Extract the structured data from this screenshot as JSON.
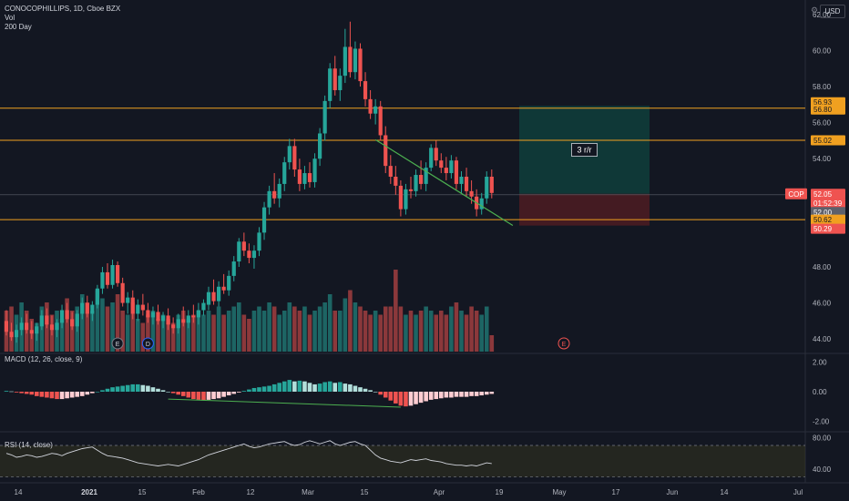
{
  "legend": {
    "symbol": "CONOCOPHILLIPS, 1D, Cboe BZX",
    "vol": "Vol",
    "ma": "200 Day"
  },
  "currency": "USD",
  "rr_label": "3 r/r",
  "macd_label": "MACD (12, 26, close, 9)",
  "rsi_label": "RSI (14, close)",
  "colors": {
    "up": "#26a69a",
    "down": "#ef5350",
    "level": "#f0a020",
    "trend": "#4caf50",
    "target": "#0f3c3a",
    "stop": "#4a1c22"
  },
  "chart_data": [
    {
      "type": "candlestick",
      "symbol": "COP",
      "timeframe": "1D",
      "x_ticks": [
        "14",
        "2021",
        "15",
        "Feb",
        "12",
        "Mar",
        "15",
        "Apr",
        "19",
        "May",
        "17",
        "Jun",
        "14",
        "Jul"
      ],
      "y_ticks": [
        44.0,
        46.0,
        48.0,
        50.0,
        52.0,
        54.0,
        56.0,
        58.0,
        60.0,
        62.0
      ],
      "ylim": [
        43.2,
        62.8
      ],
      "candles": [
        [
          45.0,
          45.6,
          44.2,
          44.4
        ],
        [
          44.4,
          44.9,
          43.9,
          44.1
        ],
        [
          44.1,
          44.8,
          43.8,
          44.5
        ],
        [
          44.5,
          45.2,
          44.2,
          44.9
        ],
        [
          44.9,
          45.4,
          44.3,
          44.5
        ],
        [
          44.5,
          45.0,
          44.0,
          44.3
        ],
        [
          44.3,
          44.9,
          43.9,
          44.7
        ],
        [
          44.7,
          45.6,
          44.5,
          45.3
        ],
        [
          45.3,
          45.7,
          44.6,
          44.8
        ],
        [
          44.8,
          45.3,
          44.2,
          44.5
        ],
        [
          44.5,
          45.1,
          44.1,
          44.9
        ],
        [
          44.9,
          45.9,
          44.6,
          45.6
        ],
        [
          45.6,
          46.0,
          44.9,
          45.1
        ],
        [
          45.1,
          45.5,
          44.5,
          44.7
        ],
        [
          44.7,
          45.6,
          44.4,
          45.4
        ],
        [
          45.4,
          46.3,
          45.1,
          46.0
        ],
        [
          46.0,
          46.4,
          45.2,
          45.4
        ],
        [
          45.4,
          46.1,
          45.0,
          45.9
        ],
        [
          45.9,
          47.0,
          45.7,
          46.8
        ],
        [
          46.8,
          48.0,
          46.5,
          47.7
        ],
        [
          47.7,
          48.2,
          46.8,
          47.0
        ],
        [
          47.0,
          48.4,
          46.8,
          48.1
        ],
        [
          48.1,
          48.3,
          46.9,
          47.1
        ],
        [
          47.1,
          47.4,
          45.8,
          46.0
        ],
        [
          46.0,
          46.6,
          45.4,
          46.3
        ],
        [
          46.3,
          46.7,
          45.1,
          45.4
        ],
        [
          45.4,
          46.2,
          45.0,
          45.9
        ],
        [
          45.9,
          46.5,
          45.3,
          45.6
        ],
        [
          45.6,
          46.0,
          44.9,
          45.2
        ],
        [
          45.2,
          45.8,
          44.8,
          45.5
        ],
        [
          45.5,
          45.9,
          44.8,
          45.0
        ],
        [
          45.0,
          45.5,
          44.6,
          45.3
        ],
        [
          45.3,
          45.7,
          44.5,
          44.8
        ],
        [
          44.8,
          45.2,
          44.3,
          44.6
        ],
        [
          44.6,
          45.4,
          44.3,
          45.1
        ],
        [
          45.1,
          45.8,
          44.7,
          44.9
        ],
        [
          44.9,
          45.6,
          44.6,
          45.3
        ],
        [
          45.3,
          45.9,
          44.9,
          45.2
        ],
        [
          45.2,
          46.0,
          44.8,
          45.6
        ],
        [
          45.6,
          46.2,
          45.3,
          46.0
        ],
        [
          45.9,
          46.9,
          45.6,
          46.6
        ],
        [
          46.6,
          47.3,
          45.9,
          46.1
        ],
        [
          46.1,
          47.2,
          45.8,
          46.9
        ],
        [
          46.9,
          47.6,
          46.5,
          46.7
        ],
        [
          46.7,
          47.8,
          46.4,
          47.5
        ],
        [
          47.5,
          48.6,
          47.2,
          48.3
        ],
        [
          48.3,
          49.6,
          48.0,
          49.4
        ],
        [
          49.4,
          49.9,
          48.6,
          48.9
        ],
        [
          48.9,
          49.3,
          48.2,
          48.5
        ],
        [
          48.5,
          49.2,
          47.9,
          48.9
        ],
        [
          48.9,
          50.2,
          48.6,
          49.9
        ],
        [
          49.9,
          51.6,
          49.5,
          51.3
        ],
        [
          51.3,
          52.5,
          50.9,
          52.2
        ],
        [
          52.2,
          53.2,
          51.5,
          51.8
        ],
        [
          51.8,
          52.9,
          51.3,
          52.6
        ],
        [
          52.6,
          54.1,
          52.2,
          53.8
        ],
        [
          53.8,
          55.1,
          53.4,
          54.7
        ],
        [
          54.7,
          55.1,
          53.0,
          53.4
        ],
        [
          53.4,
          54.0,
          52.2,
          52.6
        ],
        [
          52.6,
          53.6,
          52.3,
          53.2
        ],
        [
          53.2,
          53.8,
          52.4,
          52.7
        ],
        [
          52.7,
          54.3,
          52.4,
          54.0
        ],
        [
          54.0,
          55.7,
          53.6,
          55.4
        ],
        [
          55.4,
          57.5,
          55.0,
          57.2
        ],
        [
          57.2,
          59.3,
          56.8,
          59.0
        ],
        [
          59.0,
          59.7,
          57.5,
          57.8
        ],
        [
          57.8,
          59.0,
          57.2,
          58.6
        ],
        [
          58.6,
          61.2,
          58.2,
          60.2
        ],
        [
          60.2,
          61.6,
          58.5,
          58.8
        ],
        [
          58.8,
          60.5,
          58.4,
          60.1
        ],
        [
          60.1,
          60.4,
          58.0,
          58.3
        ],
        [
          58.3,
          58.8,
          56.9,
          57.3
        ],
        [
          57.3,
          57.8,
          56.2,
          56.5
        ],
        [
          56.5,
          57.3,
          55.9,
          56.9
        ],
        [
          56.9,
          57.2,
          55.0,
          55.3
        ],
        [
          55.3,
          55.8,
          53.2,
          53.6
        ],
        [
          53.6,
          54.2,
          52.6,
          53.0
        ],
        [
          53.0,
          53.6,
          52.0,
          52.5
        ],
        [
          52.5,
          52.8,
          50.8,
          51.2
        ],
        [
          51.2,
          52.6,
          50.9,
          52.3
        ],
        [
          52.3,
          53.0,
          51.8,
          52.2
        ],
        [
          52.2,
          53.4,
          51.9,
          53.1
        ],
        [
          53.1,
          53.9,
          52.3,
          52.6
        ],
        [
          52.6,
          53.8,
          52.2,
          53.5
        ],
        [
          53.5,
          54.8,
          53.3,
          54.6
        ],
        [
          54.6,
          55.0,
          53.6,
          53.9
        ],
        [
          53.9,
          54.3,
          53.2,
          53.5
        ],
        [
          53.5,
          54.1,
          52.8,
          53.2
        ],
        [
          53.2,
          54.2,
          52.9,
          53.9
        ],
        [
          53.9,
          54.1,
          52.3,
          52.6
        ],
        [
          52.6,
          53.3,
          52.1,
          53.0
        ],
        [
          53.0,
          53.5,
          51.9,
          52.2
        ],
        [
          52.2,
          52.8,
          51.5,
          51.9
        ],
        [
          51.9,
          52.3,
          50.8,
          51.2
        ],
        [
          51.2,
          52.1,
          50.9,
          51.8
        ],
        [
          51.8,
          53.3,
          51.5,
          53.0
        ],
        [
          53.0,
          53.4,
          51.8,
          52.1
        ]
      ],
      "volume_relative": [
        0.5,
        0.55,
        0.45,
        0.6,
        0.5,
        0.4,
        0.35,
        0.55,
        0.6,
        0.45,
        0.5,
        0.4,
        0.65,
        0.5,
        0.55,
        0.7,
        0.6,
        0.5,
        0.75,
        0.65,
        0.55,
        0.6,
        0.7,
        0.5,
        0.45,
        0.6,
        0.4,
        0.35,
        0.45,
        0.5,
        0.4,
        0.45,
        0.4,
        0.35,
        0.45,
        0.5,
        0.4,
        0.45,
        0.5,
        0.45,
        0.5,
        0.45,
        0.55,
        0.45,
        0.5,
        0.55,
        0.6,
        0.45,
        0.4,
        0.5,
        0.55,
        0.5,
        0.6,
        0.55,
        0.45,
        0.5,
        0.6,
        0.55,
        0.5,
        0.55,
        0.45,
        0.5,
        0.55,
        0.6,
        0.7,
        0.5,
        0.5,
        0.65,
        0.75,
        0.6,
        0.55,
        0.5,
        0.45,
        0.5,
        0.45,
        0.55,
        0.55,
        1.0,
        0.55,
        0.45,
        0.5,
        0.45,
        0.5,
        0.55,
        0.5,
        0.45,
        0.5,
        0.45,
        0.55,
        0.6,
        0.5,
        0.45,
        0.55,
        0.5,
        0.45,
        0.55,
        0.2
      ],
      "horizontal_levels": [
        56.8,
        55.02,
        52.0,
        50.62
      ],
      "price_labels": [
        {
          "text": "56.93",
          "kind": "level"
        },
        {
          "text": "56.80",
          "kind": "level"
        },
        {
          "text": "55.02",
          "kind": "level"
        },
        {
          "text": "52.05",
          "kind": "last"
        },
        {
          "text": "01:52:39",
          "kind": "countdown"
        },
        {
          "text": "52.00",
          "kind": "grey"
        },
        {
          "text": "50.62",
          "kind": "level"
        },
        {
          "text": "50.29",
          "kind": "stop"
        }
      ],
      "ticker_label": "COP",
      "last_price": 52.05,
      "trendline": {
        "from": [
          73,
          55.05
        ],
        "to": [
          98,
          50.6
        ]
      },
      "risk_reward": {
        "entry": 52.05,
        "target": 56.93,
        "stop": 50.29,
        "label": "3 r/r"
      },
      "events": [
        {
          "bar": 22,
          "label": "E"
        },
        {
          "bar": 28,
          "label": "D"
        },
        {
          "bar": 104,
          "label": "E"
        }
      ]
    },
    {
      "type": "histogram",
      "name": "MACD (12, 26, close, 9)",
      "y_ticks": [
        2.0,
        0.0,
        -2.0
      ],
      "ylim": [
        -2.6,
        2.6
      ],
      "values": [
        0.05,
        0.02,
        -0.05,
        -0.1,
        -0.15,
        -0.2,
        -0.3,
        -0.35,
        -0.4,
        -0.45,
        -0.5,
        -0.5,
        -0.45,
        -0.4,
        -0.35,
        -0.3,
        -0.2,
        -0.1,
        0.0,
        0.1,
        0.2,
        0.3,
        0.35,
        0.4,
        0.45,
        0.5,
        0.5,
        0.45,
        0.4,
        0.3,
        0.2,
        0.1,
        0.0,
        -0.1,
        -0.2,
        -0.3,
        -0.4,
        -0.5,
        -0.55,
        -0.6,
        -0.55,
        -0.5,
        -0.45,
        -0.35,
        -0.25,
        -0.15,
        -0.05,
        0.05,
        0.15,
        0.25,
        0.3,
        0.35,
        0.4,
        0.5,
        0.6,
        0.7,
        0.8,
        0.7,
        0.75,
        0.7,
        0.6,
        0.5,
        0.55,
        0.65,
        0.7,
        0.6,
        0.65,
        0.55,
        0.5,
        0.4,
        0.3,
        0.2,
        0.1,
        0.0,
        -0.2,
        -0.4,
        -0.6,
        -0.8,
        -0.95,
        -1.0,
        -0.95,
        -0.85,
        -0.75,
        -0.65,
        -0.55,
        -0.5,
        -0.45,
        -0.4,
        -0.4,
        -0.35,
        -0.35,
        -0.35,
        -0.3,
        -0.3,
        -0.25,
        -0.2,
        -0.15
      ],
      "divergence_line": {
        "from": [
          32,
          -0.5
        ],
        "to": [
          78,
          -1.05
        ]
      }
    },
    {
      "type": "line",
      "name": "RSI (14, close)",
      "y_ticks": [
        80.0,
        40.0
      ],
      "ylim": [
        25,
        85
      ],
      "bands": [
        70,
        30
      ],
      "values": [
        60,
        58,
        55,
        56,
        58,
        57,
        55,
        56,
        58,
        60,
        59,
        57,
        60,
        62,
        64,
        66,
        67,
        68,
        64,
        60,
        57,
        56,
        55,
        54,
        52,
        50,
        48,
        47,
        46,
        45,
        44,
        45,
        46,
        45,
        44,
        46,
        48,
        50,
        52,
        55,
        58,
        60,
        62,
        64,
        66,
        68,
        70,
        72,
        69,
        67,
        68,
        70,
        72,
        73,
        74,
        75,
        72,
        70,
        71,
        74,
        76,
        74,
        72,
        74,
        76,
        72,
        70,
        72,
        74,
        75,
        72,
        70,
        64,
        58,
        54,
        52,
        50,
        49,
        48,
        50,
        52,
        51,
        52,
        53,
        51,
        50,
        49,
        47,
        46,
        45,
        45,
        44,
        45,
        44,
        46,
        48,
        47
      ]
    }
  ]
}
